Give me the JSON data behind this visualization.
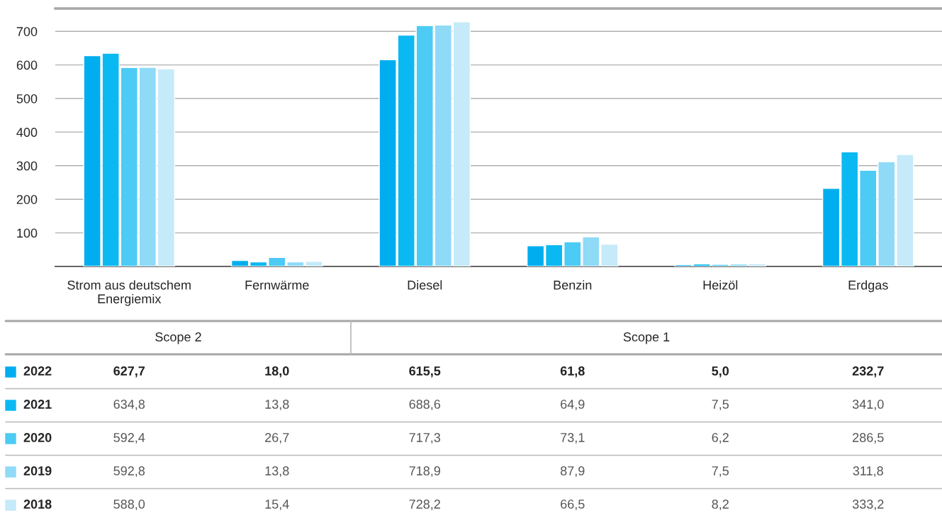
{
  "chart_data": {
    "type": "bar",
    "categories": [
      "Strom aus deutschem\nEnergiemix",
      "Fernwärme",
      "Diesel",
      "Benzin",
      "Heizöl",
      "Erdgas"
    ],
    "ylim": [
      0,
      768
    ],
    "legend": "bottom left",
    "yticks": [
      100,
      200,
      300,
      400,
      500,
      600,
      700
    ],
    "grid": "y",
    "series": [
      {
        "name": "2022",
        "color": "#00aeef",
        "values": [
          627.7,
          18.0,
          615.5,
          61.8,
          5.0,
          232.7
        ],
        "value_labels": [
          "627,7",
          "18,0",
          "615,5",
          "61,8",
          "5,0",
          "232,7"
        ]
      },
      {
        "name": "2021",
        "color": "#0bb9f2",
        "values": [
          634.8,
          13.8,
          688.6,
          64.9,
          7.5,
          341.0
        ],
        "value_labels": [
          "634,8",
          "13,8",
          "688,6",
          "64,9",
          "7,5",
          "341,0"
        ]
      },
      {
        "name": "2020",
        "color": "#4ccbf5",
        "values": [
          592.4,
          26.7,
          717.3,
          73.1,
          6.2,
          286.5
        ],
        "value_labels": [
          "592,4",
          "26,7",
          "717,3",
          "73,1",
          "6,2",
          "286,5"
        ]
      },
      {
        "name": "2019",
        "color": "#8fdaf7",
        "values": [
          592.8,
          13.8,
          718.9,
          87.9,
          7.5,
          311.8
        ],
        "value_labels": [
          "592,8",
          "13,8",
          "718,9",
          "87,9",
          "7,5",
          "311,8"
        ]
      },
      {
        "name": "2018",
        "color": "#c5eaf9",
        "values": [
          588.0,
          15.4,
          728.2,
          66.5,
          8.2,
          333.2
        ],
        "value_labels": [
          "588,0",
          "15,4",
          "728,2",
          "66,5",
          "8,2",
          "333,2"
        ]
      }
    ],
    "annotations": [
      "Scope 2",
      "Scope 1"
    ]
  }
}
